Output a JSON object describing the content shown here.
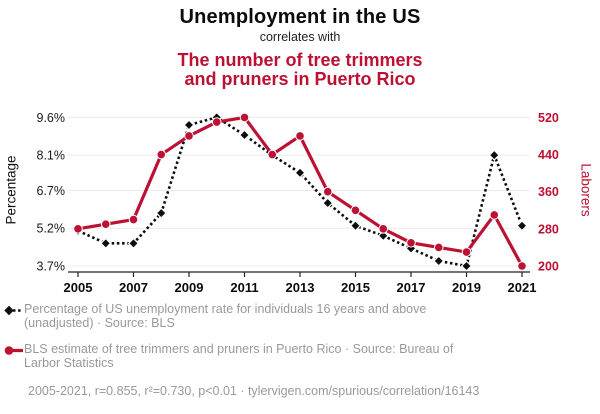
{
  "header": {
    "title": "Unemployment in the US",
    "connector": "correlates with",
    "subtitle_line1": "The number of tree trimmers",
    "subtitle_line2": "and pruners in Puerto Rico"
  },
  "chart_data": {
    "type": "line",
    "x": [
      2005,
      2006,
      2007,
      2008,
      2009,
      2010,
      2011,
      2012,
      2013,
      2014,
      2015,
      2016,
      2017,
      2018,
      2019,
      2020,
      2021
    ],
    "x_ticks": [
      2005,
      2007,
      2009,
      2011,
      2013,
      2015,
      2017,
      2019,
      2021
    ],
    "series": [
      {
        "name": "US unemployment rate",
        "legend": "Percentage of US unemployment rate for individuals 16 years and above (unadjusted) · Source: BLS",
        "axis": "left",
        "style": "dotted-diamond",
        "color": "#0d0d0d",
        "values": [
          5.1,
          4.6,
          4.6,
          5.8,
          9.3,
          9.6,
          8.9,
          8.1,
          7.4,
          6.2,
          5.3,
          4.9,
          4.4,
          3.9,
          3.7,
          8.1,
          5.3
        ]
      },
      {
        "name": "Tree trimmers and pruners in Puerto Rico",
        "legend": "BLS estimate of tree trimmers and pruners in Puerto Rico · Source: Bureau of Larbor Statistics",
        "axis": "right",
        "style": "solid-circle",
        "color": "#bd1134",
        "values": [
          280,
          290,
          300,
          440,
          480,
          510,
          520,
          440,
          480,
          360,
          320,
          280,
          250,
          240,
          230,
          310,
          200
        ]
      }
    ],
    "left_axis": {
      "label": "Percentage",
      "tick_labels": [
        "9.6%",
        "8.1%",
        "6.7%",
        "5.2%",
        "3.7%"
      ],
      "tick_values": [
        9.6,
        8.1,
        6.7,
        5.2,
        3.7
      ],
      "range": [
        3.7,
        9.6
      ]
    },
    "right_axis": {
      "label": "Laborers",
      "tick_labels": [
        "520",
        "440",
        "360",
        "280",
        "200"
      ],
      "tick_values": [
        520,
        440,
        360,
        280,
        200
      ],
      "range": [
        200,
        520
      ]
    },
    "grid": true,
    "legend_position": "bottom-left"
  },
  "legend": {
    "items": [
      {
        "marker": "black-diamond-dotted",
        "lines": [
          "Percentage of US unemployment rate for individuals 16 years and above",
          "(unadjusted) · Source: BLS"
        ]
      },
      {
        "marker": "red-circle-solid",
        "lines": [
          "BLS estimate of tree trimmers and pruners in Puerto Rico · Source: Bureau of",
          "Larbor Statistics"
        ]
      }
    ]
  },
  "footer": {
    "stats": "2005-2021, r=0.855, r²=0.730, p<0.01 · tylervigen.com/spurious/correlation/16143"
  },
  "colors": {
    "accent_red": "#bd1134",
    "series_black": "#0d0d0d",
    "text_gray": "#999999",
    "gridline": "#ebebeb",
    "axis": "#222222"
  }
}
